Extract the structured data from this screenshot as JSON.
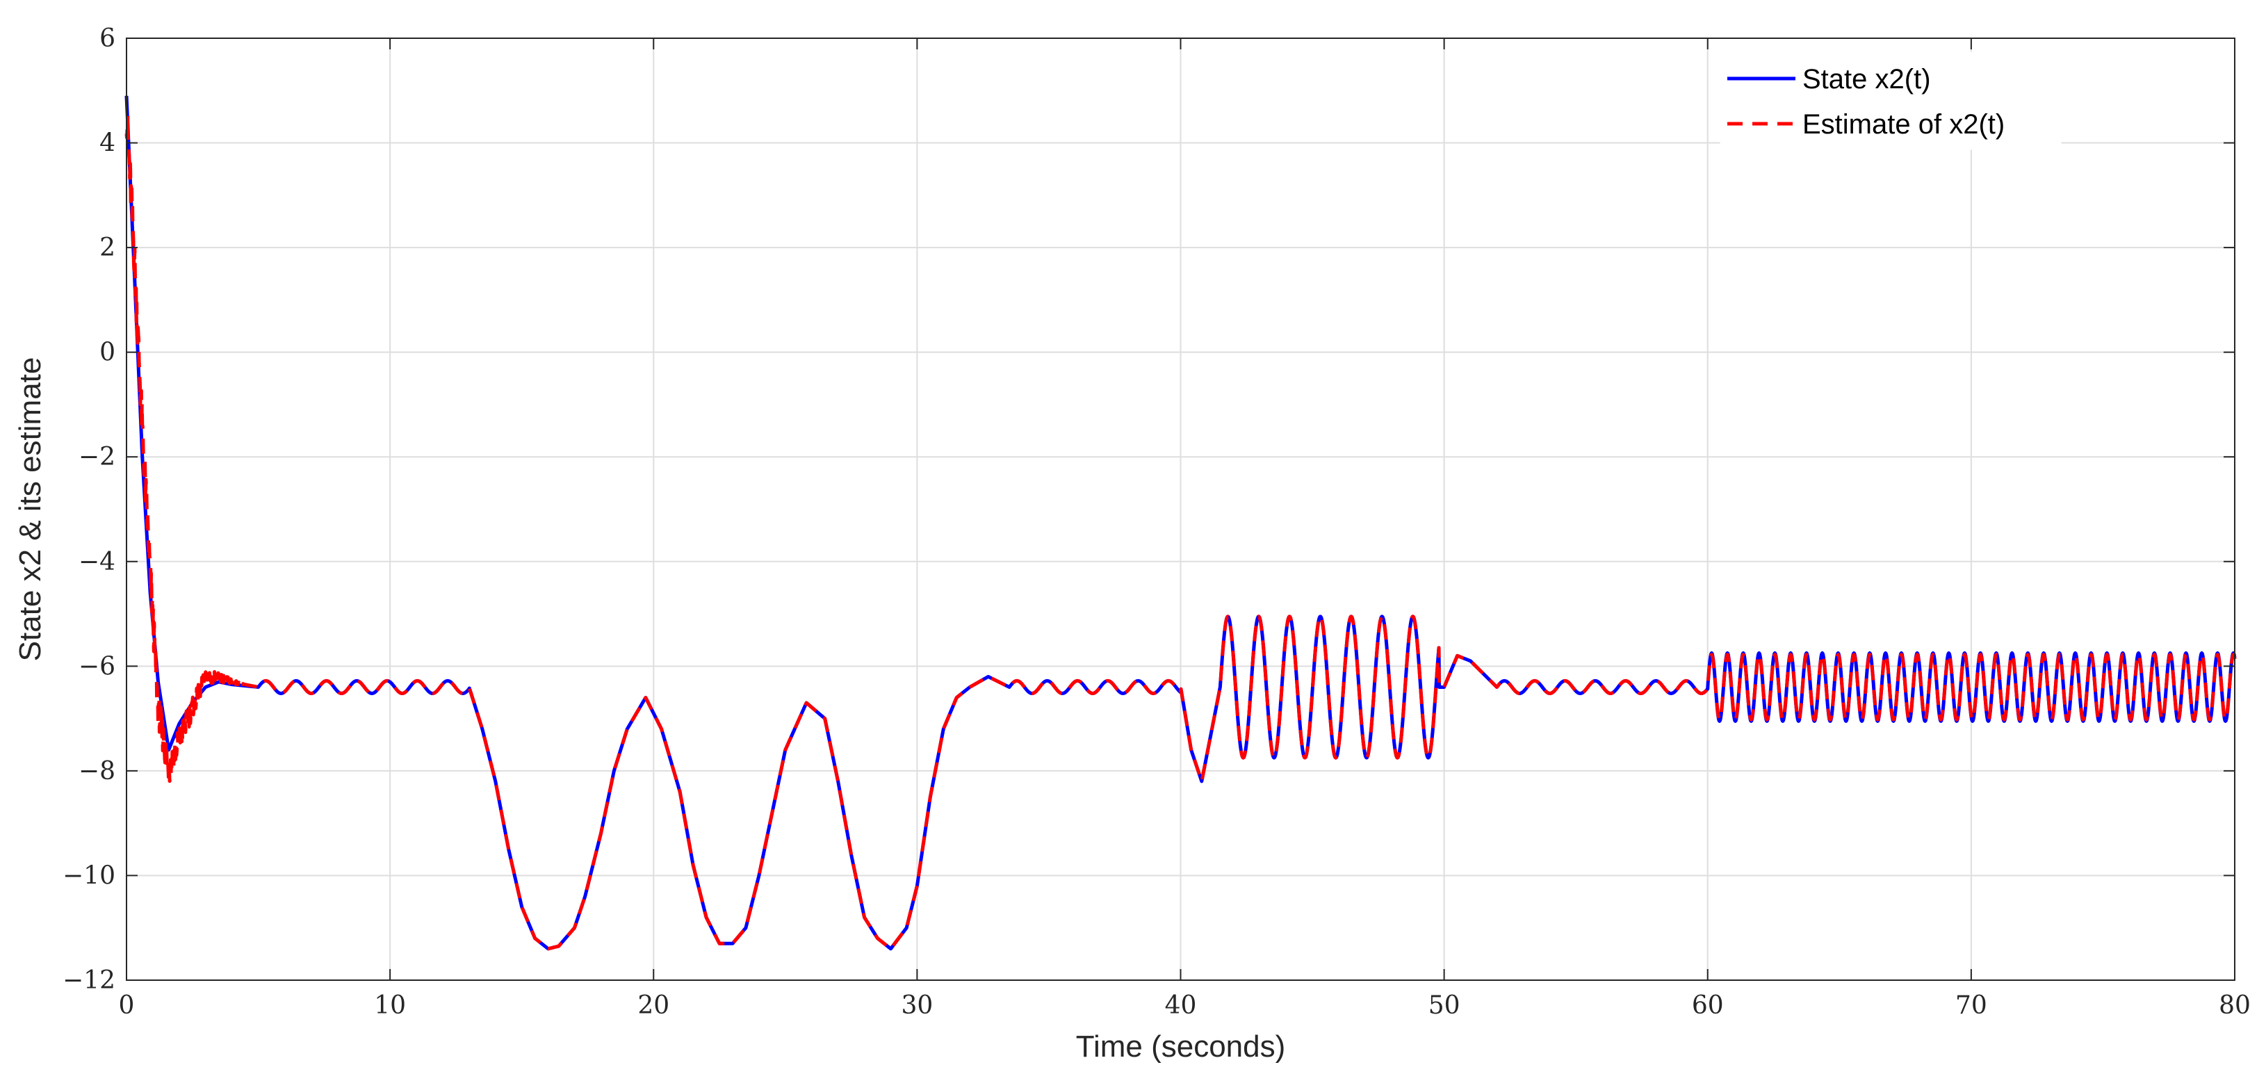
{
  "chart_data": {
    "type": "line",
    "title": "",
    "xlabel": "Time (seconds)",
    "ylabel": "State x2 & its estimate",
    "xlim": [
      0,
      80
    ],
    "ylim": [
      -12,
      6
    ],
    "xticks": [
      0,
      10,
      20,
      30,
      40,
      50,
      60,
      70,
      80
    ],
    "xtick_labels": [
      "0",
      "10",
      "20",
      "30",
      "40",
      "50",
      "60",
      "70",
      "80"
    ],
    "yticks": [
      -12,
      -10,
      -8,
      -6,
      -4,
      -2,
      0,
      2,
      4,
      6
    ],
    "ytick_labels": [
      "−12",
      "−10",
      "−8",
      "−6",
      "−4",
      "−2",
      "0",
      "2",
      "4",
      "6"
    ],
    "grid": true,
    "legend_position": "top-right",
    "series": [
      {
        "name": "State x2(t)",
        "color": "#0000ff",
        "style": "solid",
        "x": [
          0,
          0.3,
          0.6,
          0.9,
          1.2,
          1.6,
          2.0,
          2.5,
          3.0,
          3.5,
          4.0,
          5.0,
          13.0,
          13.5,
          14.0,
          14.5,
          15.0,
          15.5,
          16.0,
          16.4,
          17.0,
          17.4,
          18.0,
          18.5,
          19.0,
          19.7,
          20.3,
          21.0,
          21.5,
          22.0,
          22.5,
          23.0,
          23.5,
          24.0,
          24.5,
          25.0,
          25.8,
          26.5,
          27.0,
          27.5,
          28.0,
          28.5,
          29.0,
          29.6,
          30.0,
          30.5,
          31.0,
          31.5,
          32.0,
          32.7,
          33.5,
          40.0,
          40.4,
          40.8,
          41.5,
          50.0,
          50.5,
          51.0,
          52.0,
          60.0,
          80.0
        ],
        "y": [
          4.9,
          1.5,
          -2.0,
          -4.6,
          -6.3,
          -7.6,
          -7.1,
          -6.7,
          -6.4,
          -6.3,
          -6.35,
          -6.4,
          -6.4,
          -7.2,
          -8.2,
          -9.5,
          -10.6,
          -11.2,
          -11.4,
          -11.35,
          -11.0,
          -10.4,
          -9.2,
          -8.0,
          -7.2,
          -6.6,
          -7.2,
          -8.4,
          -9.8,
          -10.8,
          -11.3,
          -11.3,
          -11.0,
          -10.0,
          -8.8,
          -7.6,
          -6.7,
          -7.0,
          -8.2,
          -9.6,
          -10.8,
          -11.2,
          -11.4,
          -11.0,
          -10.2,
          -8.5,
          -7.2,
          -6.6,
          -6.4,
          -6.2,
          -6.4,
          -6.4,
          -7.6,
          -8.2,
          -6.4,
          -6.4,
          -5.8,
          -5.9,
          -6.4,
          -6.4,
          -6.4
        ],
        "oscillation": [
          {
            "t_start": 5.0,
            "t_end": 13.0,
            "amplitude": 0.12,
            "period": 1.15
          },
          {
            "t_start": 33.5,
            "t_end": 40.0,
            "amplitude": 0.12,
            "period": 1.15
          },
          {
            "t_start": 41.5,
            "t_end": 49.8,
            "amplitude": 1.35,
            "period": 1.17
          },
          {
            "t_start": 52.0,
            "t_end": 60.0,
            "amplitude": 0.12,
            "period": 1.15
          },
          {
            "t_start": 60.0,
            "t_end": 80.0,
            "amplitude": 0.65,
            "period": 0.6
          }
        ]
      },
      {
        "name": "Estimate of x2(t)",
        "color": "#ff0000",
        "style": "dashed",
        "x": [
          0,
          0.3,
          0.6,
          0.9,
          1.2,
          1.6,
          2.0,
          2.5,
          3.0,
          3.5,
          4.0,
          5.0,
          13.0,
          13.5,
          14.0,
          14.5,
          15.0,
          15.5,
          16.0,
          16.4,
          17.0,
          17.4,
          18.0,
          18.5,
          19.0,
          19.7,
          20.3,
          21.0,
          21.5,
          22.0,
          22.5,
          23.0,
          23.5,
          24.0,
          24.5,
          25.0,
          25.8,
          26.5,
          27.0,
          27.5,
          28.0,
          28.5,
          29.0,
          29.6,
          30.0,
          30.5,
          31.0,
          31.5,
          32.0,
          32.7,
          33.5,
          40.0,
          40.4,
          40.8,
          41.5,
          50.0,
          50.5,
          51.0,
          52.0,
          60.0,
          80.0
        ],
        "y": [
          4.6,
          1.8,
          -1.5,
          -4.2,
          -6.8,
          -8.0,
          -7.4,
          -6.8,
          -6.2,
          -6.2,
          -6.3,
          -6.4,
          -6.4,
          -7.2,
          -8.2,
          -9.5,
          -10.6,
          -11.2,
          -11.4,
          -11.35,
          -11.0,
          -10.4,
          -9.2,
          -8.0,
          -7.2,
          -6.6,
          -7.2,
          -8.4,
          -9.8,
          -10.8,
          -11.3,
          -11.3,
          -11.0,
          -10.0,
          -8.8,
          -7.6,
          -6.7,
          -7.0,
          -8.2,
          -9.6,
          -10.8,
          -11.2,
          -11.4,
          -11.0,
          -10.2,
          -8.5,
          -7.2,
          -6.6,
          -6.4,
          -6.2,
          -6.4,
          -6.4,
          -7.6,
          -8.2,
          -6.4,
          -6.4,
          -5.8,
          -5.9,
          -6.4,
          -6.4,
          -6.4
        ],
        "oscillation": [
          {
            "t_start": 5.0,
            "t_end": 13.0,
            "amplitude": 0.12,
            "period": 1.15
          },
          {
            "t_start": 33.5,
            "t_end": 40.0,
            "amplitude": 0.12,
            "period": 1.15
          },
          {
            "t_start": 41.5,
            "t_end": 49.8,
            "amplitude": 1.35,
            "period": 1.17
          },
          {
            "t_start": 52.0,
            "t_end": 60.0,
            "amplitude": 0.12,
            "period": 1.15
          },
          {
            "t_start": 60.0,
            "t_end": 80.0,
            "amplitude": 0.62,
            "period": 0.6
          }
        ],
        "transient_noise": {
          "t_start": 0.0,
          "t_end": 4.5,
          "amplitude": 0.45
        }
      }
    ]
  }
}
